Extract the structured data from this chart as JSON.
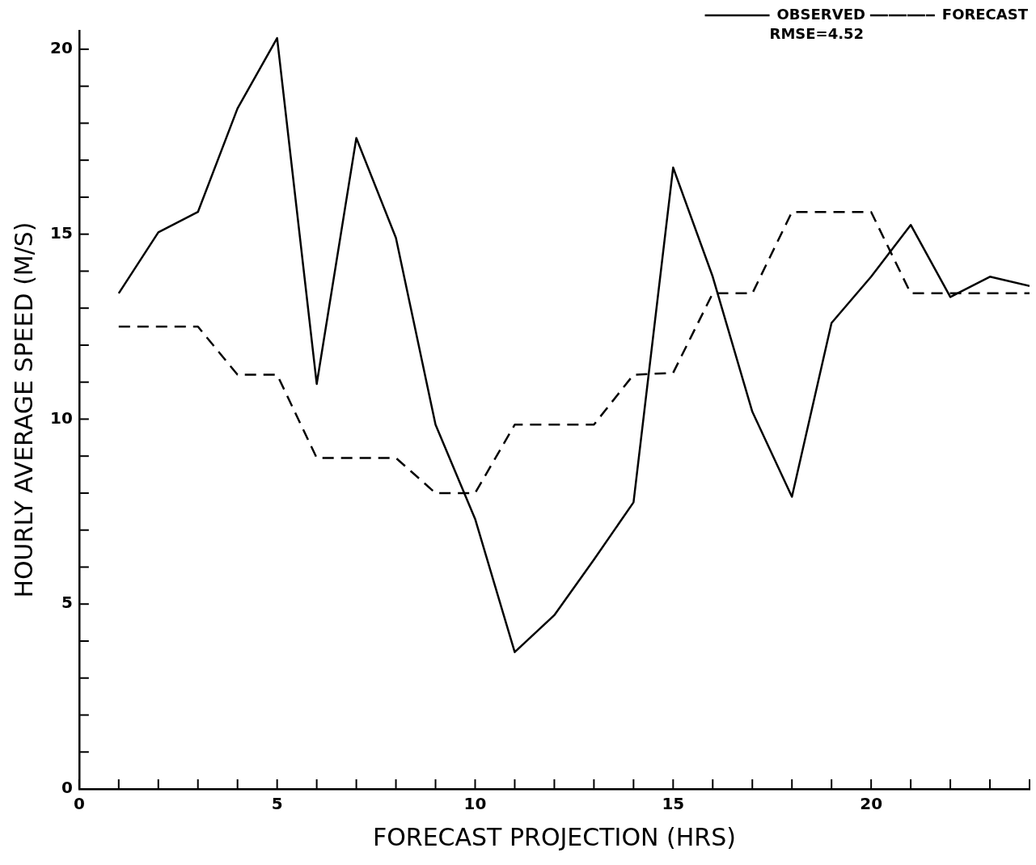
{
  "chart_data": {
    "type": "line",
    "xlabel": "FORECAST PROJECTION (HRS)",
    "ylabel": "HOURLY AVERAGE SPEED (M/S)",
    "x": [
      1,
      2,
      3,
      4,
      5,
      6,
      7,
      8,
      9,
      10,
      11,
      12,
      13,
      14,
      15,
      16,
      17,
      18,
      19,
      20,
      21,
      22,
      23,
      24
    ],
    "series": [
      {
        "name": "OBSERVED",
        "color": "#000000",
        "line_style": "solid",
        "values": [
          13.4,
          15.05,
          15.6,
          18.4,
          20.3,
          10.95,
          17.6,
          14.9,
          9.85,
          7.3,
          3.7,
          4.7,
          6.2,
          7.75,
          16.8,
          13.85,
          10.2,
          7.9,
          12.6,
          13.85,
          15.25,
          13.3,
          13.85,
          13.6
        ]
      },
      {
        "name": "FORECAST",
        "color": "#000000",
        "line_style": "dashed",
        "values": [
          12.5,
          12.5,
          12.5,
          11.2,
          11.2,
          8.95,
          8.95,
          8.95,
          8.0,
          8.0,
          9.85,
          9.85,
          9.85,
          11.2,
          11.25,
          13.4,
          13.4,
          15.6,
          15.6,
          15.6,
          13.4,
          13.4,
          13.4,
          13.4
        ]
      }
    ],
    "annotations": [
      "RMSE=4.52"
    ],
    "xlim": [
      0,
      24
    ],
    "xticks": [
      0,
      {
        "value": 1,
        "label": null
      },
      {
        "value": 2,
        "label": null
      },
      {
        "value": 3,
        "label": null
      },
      {
        "value": 4,
        "label": null
      },
      5,
      {
        "value": 6,
        "label": null
      },
      {
        "value": 7,
        "label": null
      },
      {
        "value": 8,
        "label": null
      },
      {
        "value": 9,
        "label": null
      },
      10,
      {
        "value": 11,
        "label": null
      },
      {
        "value": 12,
        "label": null
      },
      {
        "value": 13,
        "label": null
      },
      {
        "value": 14,
        "label": null
      },
      15,
      {
        "value": 16,
        "label": null
      },
      {
        "value": 17,
        "label": null
      },
      {
        "value": 18,
        "label": null
      },
      {
        "value": 19,
        "label": null
      },
      20,
      {
        "value": 21,
        "label": null
      },
      {
        "value": 22,
        "label": null
      },
      {
        "value": 23,
        "label": null
      },
      {
        "value": 24,
        "label": null
      }
    ],
    "ylim": [
      0,
      20.5
    ],
    "yticks": [
      0,
      {
        "value": 1,
        "label": null
      },
      {
        "value": 2,
        "label": null
      },
      {
        "value": 3,
        "label": null
      },
      {
        "value": 4,
        "label": null
      },
      5,
      {
        "value": 6,
        "label": null
      },
      {
        "value": 7,
        "label": null
      },
      {
        "value": 8,
        "label": null
      },
      {
        "value": 9,
        "label": null
      },
      10,
      {
        "value": 11,
        "label": null
      },
      {
        "value": 12,
        "label": null
      },
      {
        "value": 13,
        "label": null
      },
      {
        "value": 14,
        "label": null
      },
      15,
      {
        "value": 16,
        "label": null
      },
      {
        "value": 17,
        "label": null
      },
      {
        "value": 18,
        "label": null
      },
      {
        "value": 19,
        "label": null
      },
      20
    ],
    "grid": false,
    "legend": "top right",
    "marker": "none"
  }
}
